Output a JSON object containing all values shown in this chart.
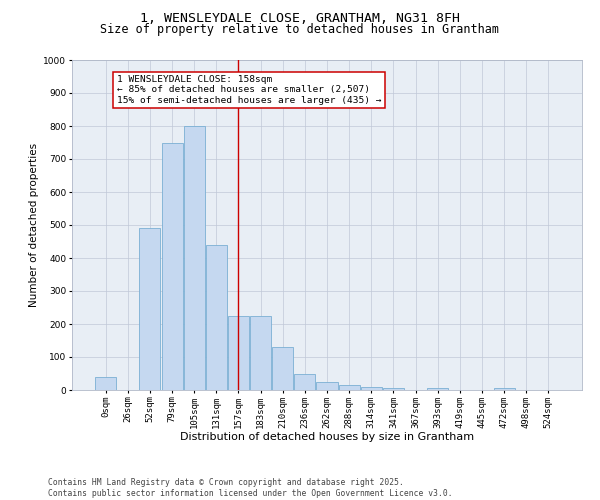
{
  "title": "1, WENSLEYDALE CLOSE, GRANTHAM, NG31 8FH",
  "subtitle": "Size of property relative to detached houses in Grantham",
  "xlabel": "Distribution of detached houses by size in Grantham",
  "ylabel": "Number of detached properties",
  "bin_labels": [
    "0sqm",
    "26sqm",
    "52sqm",
    "79sqm",
    "105sqm",
    "131sqm",
    "157sqm",
    "183sqm",
    "210sqm",
    "236sqm",
    "262sqm",
    "288sqm",
    "314sqm",
    "341sqm",
    "367sqm",
    "393sqm",
    "419sqm",
    "445sqm",
    "472sqm",
    "498sqm",
    "524sqm"
  ],
  "bar_heights": [
    40,
    0,
    490,
    750,
    800,
    440,
    225,
    225,
    130,
    50,
    25,
    15,
    10,
    5,
    0,
    5,
    0,
    0,
    5,
    0,
    0
  ],
  "bar_color": "#c5d8f0",
  "bar_edge_color": "#7aafd4",
  "vline_x": 6,
  "vline_color": "#cc0000",
  "annotation_text": "1 WENSLEYDALE CLOSE: 158sqm\n← 85% of detached houses are smaller (2,507)\n15% of semi-detached houses are larger (435) →",
  "annotation_box_color": "#ffffff",
  "annotation_box_edge_color": "#cc0000",
  "ylim": [
    0,
    1000
  ],
  "yticks": [
    0,
    100,
    200,
    300,
    400,
    500,
    600,
    700,
    800,
    900,
    1000
  ],
  "plot_bg_color": "#e8eef5",
  "footer_text": "Contains HM Land Registry data © Crown copyright and database right 2025.\nContains public sector information licensed under the Open Government Licence v3.0.",
  "title_fontsize": 9.5,
  "subtitle_fontsize": 8.5,
  "xlabel_fontsize": 8,
  "ylabel_fontsize": 7.5,
  "tick_fontsize": 6.5,
  "footer_fontsize": 5.8,
  "annotation_fontsize": 6.8
}
